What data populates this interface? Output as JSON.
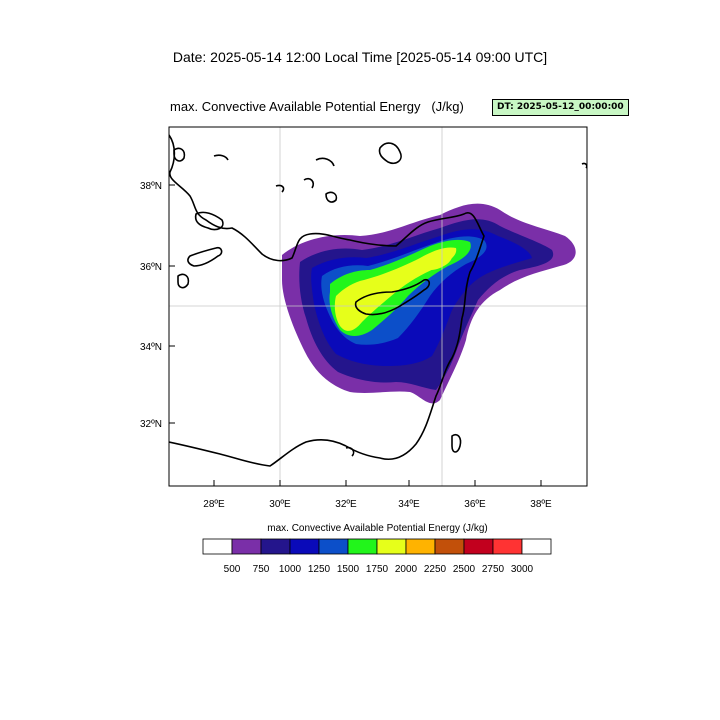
{
  "header": {
    "date_line": "Date: 2025-05-14  12:00 Local Time [2025-05-14  09:00 UTC]"
  },
  "plot": {
    "title": "max. Convective Available Potential Energy   (J/kg)",
    "dt_badge": "DT: 2025-05-12_00:00:00",
    "x_ticks": [
      "28ºE",
      "30ºE",
      "32ºE",
      "34ºE",
      "36ºE",
      "38ºE"
    ],
    "y_ticks": [
      "38ºN",
      "36ºN",
      "34ºN",
      "32ºN"
    ]
  },
  "colorbar": {
    "title": "max. Convective Available Potential Energy  (J/kg)",
    "levels": [
      "500",
      "750",
      "1000",
      "1250",
      "1500",
      "1750",
      "2000",
      "2250",
      "2500",
      "2750",
      "3000"
    ],
    "colors": [
      "#ffffff",
      "#7a2fa8",
      "#24158c",
      "#0a0ab9",
      "#0c4fc9",
      "#22f51b",
      "#e6ff1a",
      "#ffb300",
      "#c2500a",
      "#c2001e",
      "#ff3333",
      "#ffffff"
    ]
  }
}
